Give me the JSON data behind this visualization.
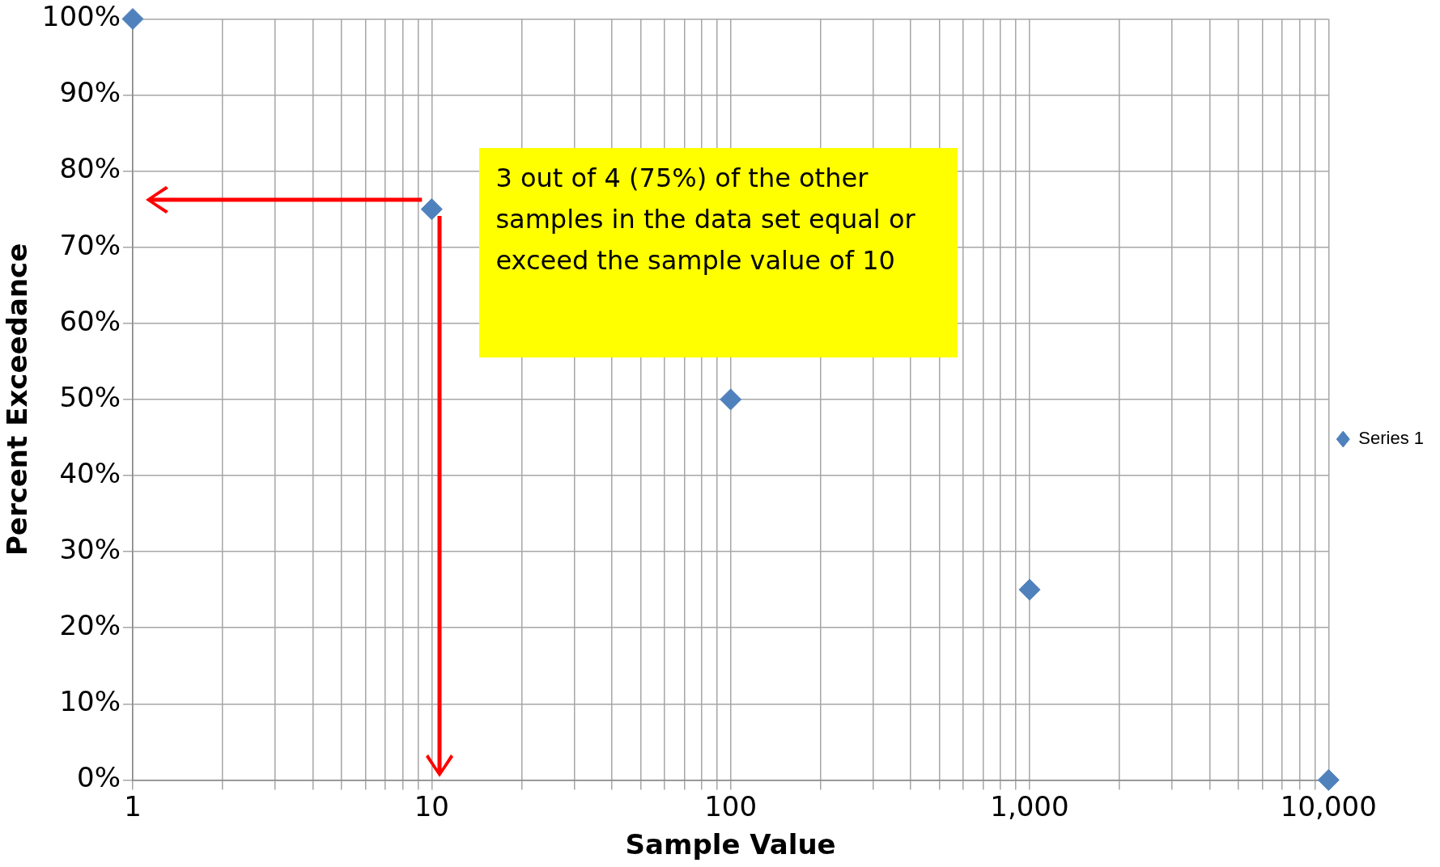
{
  "chart_data": {
    "type": "scatter",
    "xlabel": "Sample Value",
    "ylabel": "Percent Exceedance",
    "log": "x",
    "marker": "diamond",
    "grid": true,
    "legend": "right",
    "series": [
      {
        "name": "Series 1",
        "color": "#4f81bd",
        "x": [
          1,
          10,
          100,
          1000,
          10000
        ],
        "values": [
          100,
          75,
          50,
          25,
          0
        ]
      }
    ],
    "xlim": [
      1,
      10000
    ],
    "xticks": [
      {
        "value": 1,
        "label": "1"
      },
      {
        "value": 2,
        "label": null
      },
      {
        "value": 3,
        "label": null
      },
      {
        "value": 4,
        "label": null
      },
      {
        "value": 5,
        "label": null
      },
      {
        "value": 6,
        "label": null
      },
      {
        "value": 7,
        "label": null
      },
      {
        "value": 8,
        "label": null
      },
      {
        "value": 9,
        "label": null
      },
      {
        "value": 10,
        "label": "10"
      },
      {
        "value": 20,
        "label": null
      },
      {
        "value": 30,
        "label": null
      },
      {
        "value": 40,
        "label": null
      },
      {
        "value": 50,
        "label": null
      },
      {
        "value": 60,
        "label": null
      },
      {
        "value": 70,
        "label": null
      },
      {
        "value": 80,
        "label": null
      },
      {
        "value": 90,
        "label": null
      },
      {
        "value": 100,
        "label": "100"
      },
      {
        "value": 200,
        "label": null
      },
      {
        "value": 300,
        "label": null
      },
      {
        "value": 400,
        "label": null
      },
      {
        "value": 500,
        "label": null
      },
      {
        "value": 600,
        "label": null
      },
      {
        "value": 700,
        "label": null
      },
      {
        "value": 800,
        "label": null
      },
      {
        "value": 900,
        "label": null
      },
      {
        "value": 1000,
        "label": "1,000"
      },
      {
        "value": 2000,
        "label": null
      },
      {
        "value": 3000,
        "label": null
      },
      {
        "value": 4000,
        "label": null
      },
      {
        "value": 5000,
        "label": null
      },
      {
        "value": 6000,
        "label": null
      },
      {
        "value": 7000,
        "label": null
      },
      {
        "value": 8000,
        "label": null
      },
      {
        "value": 9000,
        "label": null
      },
      {
        "value": 10000,
        "label": "10,000"
      }
    ],
    "ylim": [
      0,
      100
    ],
    "yticks": [
      {
        "value": 0,
        "label": "0%"
      },
      {
        "value": 10,
        "label": "10%"
      },
      {
        "value": 20,
        "label": "20%"
      },
      {
        "value": 30,
        "label": "30%"
      },
      {
        "value": 40,
        "label": "40%"
      },
      {
        "value": 50,
        "label": "50%"
      },
      {
        "value": 60,
        "label": "60%"
      },
      {
        "value": 70,
        "label": "70%"
      },
      {
        "value": 80,
        "label": "80%"
      },
      {
        "value": 90,
        "label": "90%"
      },
      {
        "value": 100,
        "label": "100%"
      }
    ],
    "annotations": [
      {
        "text": "3 out of 4 (75%) of the other samples  in the data set equal or exceed the sample value of 10",
        "x": 10,
        "y": 75
      }
    ]
  }
}
